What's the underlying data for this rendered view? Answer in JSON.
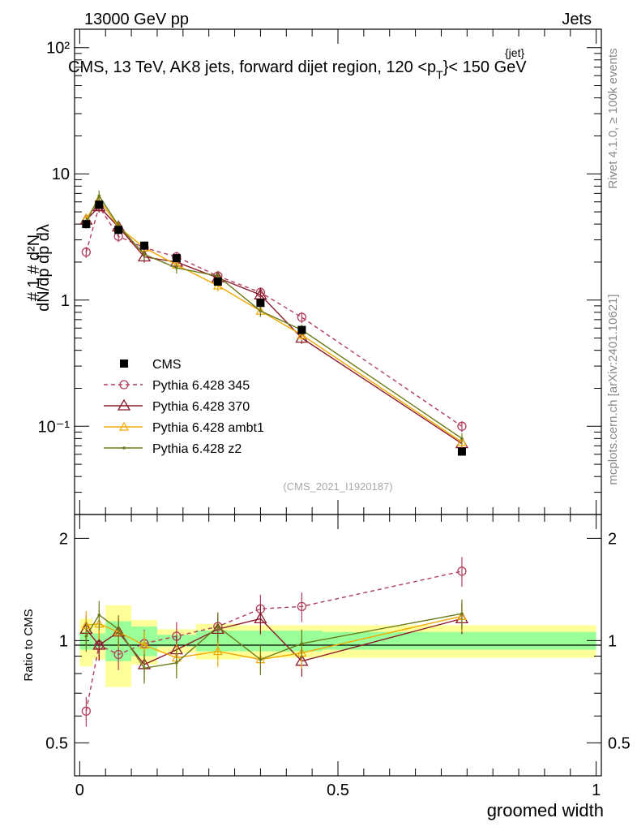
{
  "header": {
    "left": "13000 GeV pp",
    "right": "Jets"
  },
  "side_labels": {
    "rivet": "Rivet 4.1.0, ≥ 100k events",
    "mcplots": "mcplots.cern.ch [arXiv:2401.10621]"
  },
  "watermark": "(CMS_2021_I1920187)",
  "chart_data": [
    {
      "type": "line",
      "title": "CMS, 13 TeV, AK8 jets, forward dijet region, 120 <p_T^{jet}< 150 GeV",
      "title_main": "CMS, 13 TeV, AK8 jets, forward dijet region, 120 <p",
      "title_sup": "{jet}",
      "title_sub": "T",
      "title_end": "}< 150 GeV",
      "ylabel": "1/N dN/dp_T d^2N/dp_T dλ",
      "yscale": "log",
      "ylim": [
        0.02,
        140
      ],
      "xlim": [
        -0.01,
        1.01
      ],
      "ytick_labels": [
        "10⁻¹",
        "1",
        "10",
        "10²"
      ],
      "ytick_values": [
        0.1,
        1,
        10,
        100
      ],
      "legend_position": "middle-left",
      "x": [
        0.0125,
        0.0375,
        0.075,
        0.125,
        0.1875,
        0.2675,
        0.35,
        0.43,
        0.74
      ],
      "series": [
        {
          "name": "CMS",
          "style": "square",
          "color": "#000000",
          "values": [
            4.0,
            5.7,
            3.6,
            2.7,
            2.15,
            1.4,
            0.95,
            0.58,
            0.063
          ]
        },
        {
          "name": "Pythia 6.428 345",
          "style": "circle-dashed",
          "color": "#b03d5b",
          "values": [
            2.4,
            5.5,
            3.2,
            2.6,
            2.2,
            1.55,
            1.15,
            0.73,
            0.1
          ]
        },
        {
          "name": "Pythia 6.428 370",
          "style": "triangle",
          "color": "#8b1a2b",
          "values": [
            4.3,
            5.5,
            3.8,
            2.2,
            2.0,
            1.5,
            1.1,
            0.5,
            0.073
          ]
        },
        {
          "name": "Pythia 6.428 ambt1",
          "style": "triangle-small",
          "color": "#f0a800",
          "values": [
            4.4,
            6.3,
            3.8,
            2.6,
            1.9,
            1.3,
            0.82,
            0.53,
            0.075
          ]
        },
        {
          "name": "Pythia 6.428 z2",
          "style": "dot",
          "color": "#6b7a1a",
          "values": [
            4.1,
            6.7,
            3.9,
            2.3,
            1.8,
            1.55,
            0.82,
            0.58,
            0.08
          ]
        }
      ]
    },
    {
      "type": "line",
      "ylabel": "Ratio to CMS",
      "xlabel": "groomed width",
      "yscale": "log",
      "ylim": [
        0.4,
        2.35
      ],
      "xlim": [
        -0.01,
        1.01
      ],
      "xtick_labels": [
        "0",
        "0.5",
        "1"
      ],
      "xtick_values": [
        0,
        0.5,
        1
      ],
      "ytick_labels": [
        "0.5",
        "1",
        "2"
      ],
      "ytick_values": [
        0.5,
        1,
        2
      ],
      "bin_edges": [
        0,
        0.025,
        0.05,
        0.1,
        0.15,
        0.225,
        0.31,
        0.39,
        0.47,
        1.0
      ],
      "band_inner": [
        [
          0.94,
          1.06
        ],
        [
          0.95,
          1.05
        ],
        [
          0.87,
          1.14
        ],
        [
          0.9,
          1.1
        ],
        [
          0.96,
          1.04
        ],
        [
          0.93,
          1.07
        ],
        [
          0.93,
          1.07
        ],
        [
          0.93,
          1.07
        ],
        [
          0.94,
          1.06
        ]
      ],
      "band_outer": [
        [
          0.84,
          1.16
        ],
        [
          0.88,
          1.12
        ],
        [
          0.73,
          1.27
        ],
        [
          0.85,
          1.15
        ],
        [
          0.92,
          1.08
        ],
        [
          0.88,
          1.12
        ],
        [
          0.89,
          1.11
        ],
        [
          0.89,
          1.11
        ],
        [
          0.89,
          1.11
        ]
      ],
      "x": [
        0.0125,
        0.0375,
        0.075,
        0.125,
        0.1875,
        0.2675,
        0.35,
        0.43,
        0.74
      ],
      "series": [
        {
          "name": "Pythia 6.428 345",
          "style": "circle-dashed",
          "color": "#b03d5b",
          "values": [
            0.62,
            0.97,
            0.91,
            0.98,
            1.03,
            1.1,
            1.24,
            1.26,
            1.6
          ]
        },
        {
          "name": "Pythia 6.428 370",
          "style": "triangle",
          "color": "#8b1a2b",
          "values": [
            1.08,
            0.97,
            1.06,
            0.85,
            0.94,
            1.08,
            1.16,
            0.87,
            1.16
          ]
        },
        {
          "name": "Pythia 6.428 ambt1",
          "style": "triangle-small",
          "color": "#f0a800",
          "values": [
            1.11,
            1.12,
            1.06,
            0.97,
            0.89,
            0.93,
            0.88,
            0.92,
            1.18
          ]
        },
        {
          "name": "Pythia 6.428 z2",
          "style": "dot",
          "color": "#6b7a1a",
          "values": [
            1.03,
            1.19,
            1.08,
            0.83,
            0.86,
            1.1,
            0.88,
            0.98,
            1.2
          ]
        }
      ]
    }
  ]
}
